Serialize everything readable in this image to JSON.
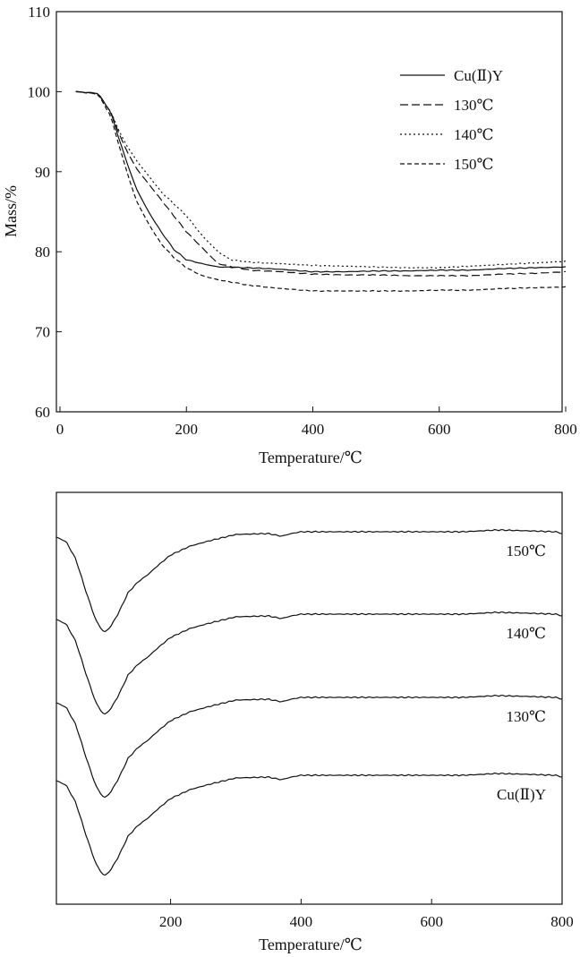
{
  "chart_data": [
    {
      "type": "line",
      "xlabel": "Temperature/℃",
      "ylabel": "Mass/%",
      "xlim": [
        0,
        800
      ],
      "ylim": [
        60,
        110
      ],
      "xticks": [
        "0",
        "200",
        "400",
        "600",
        "800"
      ],
      "yticks": [
        "60",
        "70",
        "80",
        "90",
        "100",
        "110"
      ],
      "grid": false,
      "legend_position": "top-right",
      "series": [
        {
          "name": "Cu(Ⅱ)Y",
          "style": "solid",
          "x": [
            25,
            60,
            80,
            100,
            120,
            140,
            160,
            180,
            200,
            225,
            250,
            300,
            350,
            400,
            450,
            500,
            550,
            600,
            650,
            700,
            750,
            800
          ],
          "y": [
            100,
            99.8,
            97.5,
            92.5,
            88,
            85,
            82.5,
            80.3,
            79,
            78.5,
            78.1,
            78,
            77.8,
            77.5,
            77.5,
            77.6,
            77.6,
            77.7,
            77.7,
            77.9,
            78,
            78.1
          ]
        },
        {
          "name": "130℃",
          "style": "dashed",
          "x": [
            25,
            60,
            80,
            100,
            120,
            140,
            160,
            180,
            200,
            225,
            250,
            300,
            350,
            400,
            450,
            500,
            550,
            600,
            650,
            700,
            750,
            800
          ],
          "y": [
            100,
            99.8,
            97.5,
            93.5,
            90.5,
            88.5,
            86.5,
            84.5,
            82.5,
            80.5,
            78.5,
            77.7,
            77.5,
            77.2,
            77.1,
            77.1,
            77.0,
            77.0,
            77.0,
            77.2,
            77.3,
            77.5
          ]
        },
        {
          "name": "140℃",
          "style": "dotted",
          "x": [
            25,
            60,
            80,
            100,
            120,
            140,
            160,
            180,
            200,
            225,
            250,
            270,
            300,
            350,
            400,
            450,
            500,
            550,
            600,
            650,
            700,
            750,
            800
          ],
          "y": [
            100,
            99.7,
            97.5,
            94,
            91.5,
            89.5,
            87.5,
            86,
            84.5,
            82,
            80,
            79,
            78.7,
            78.5,
            78.3,
            78.2,
            78.1,
            78.0,
            78.0,
            78.2,
            78.4,
            78.6,
            78.8
          ]
        },
        {
          "name": "150℃",
          "style": "dense-dashed",
          "x": [
            25,
            60,
            80,
            100,
            120,
            140,
            160,
            180,
            200,
            225,
            250,
            300,
            350,
            400,
            450,
            500,
            550,
            600,
            650,
            700,
            750,
            800
          ],
          "y": [
            100,
            99.7,
            97,
            91.5,
            86.5,
            83.5,
            81,
            79.3,
            78,
            77,
            76.5,
            75.8,
            75.4,
            75.1,
            75.1,
            75.1,
            75.1,
            75.2,
            75.2,
            75.4,
            75.5,
            75.6
          ]
        }
      ]
    },
    {
      "type": "line",
      "xlabel": "Temperature/℃",
      "xlim": [
        25,
        800
      ],
      "xticks": [
        "200",
        "400",
        "600",
        "800"
      ],
      "yaxis_visible": false,
      "grid": false,
      "profile": {
        "x": [
          25,
          40,
          55,
          70,
          85,
          95,
          100,
          108,
          120,
          135,
          150,
          165,
          180,
          200,
          230,
          260,
          300,
          350,
          370,
          385,
          400,
          450,
          500,
          600,
          650,
          700,
          750,
          790,
          800
        ],
        "y": [
          0,
          -5,
          -25,
          -60,
          -92,
          -104,
          -106,
          -100,
          -85,
          -62,
          -50,
          -42,
          -32,
          -20,
          -10,
          -4,
          3,
          4,
          1,
          4,
          6,
          6,
          6,
          6,
          6,
          8,
          7,
          6,
          4
        ]
      },
      "series": [
        {
          "name": "150℃",
          "offset": 0
        },
        {
          "name": "140℃",
          "offset": 92
        },
        {
          "name": "130℃",
          "offset": 185
        },
        {
          "name": "Cu(Ⅱ)Y",
          "offset": 272
        }
      ]
    }
  ]
}
